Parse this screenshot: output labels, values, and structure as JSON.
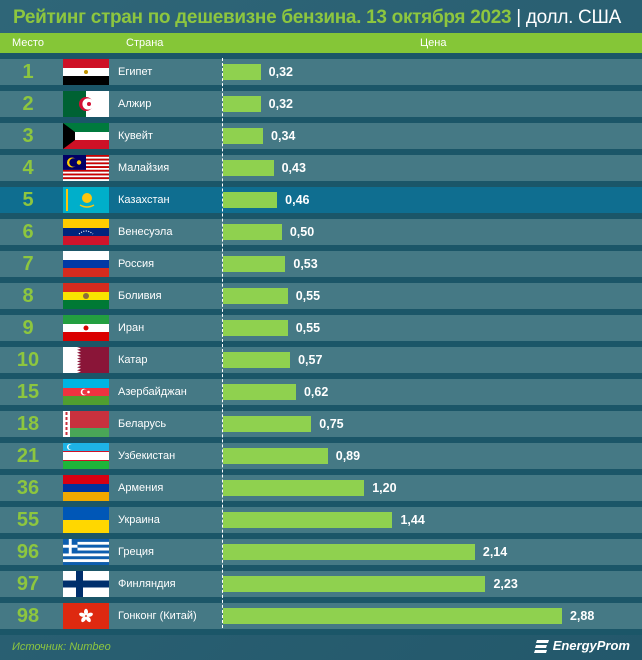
{
  "title": {
    "main": "Рейтинг стран по дешевизне бензина. 13 октября 2023",
    "separator": "|",
    "unit": "долл. США"
  },
  "header": {
    "rank": "Место",
    "country": "Страна",
    "price": "Цена"
  },
  "footer": {
    "source": "Источник: Numbeo",
    "logo": "EnergyProm"
  },
  "colors": {
    "bar": "#8fd14f",
    "highlight_row": "#0f6e90",
    "header": "#85c637",
    "title": "#8dc63f"
  },
  "chart_data": {
    "type": "bar",
    "orientation": "horizontal",
    "title": "Рейтинг стран по дешевизне бензина. 13 октября 2023 | долл. США",
    "highlight": "Казахстан",
    "rows": [
      {
        "rank": "1",
        "country": "Египет",
        "flag": "egypt",
        "value": 0.32,
        "label": "0,32"
      },
      {
        "rank": "2",
        "country": "Алжир",
        "flag": "algeria",
        "value": 0.32,
        "label": "0,32"
      },
      {
        "rank": "3",
        "country": "Кувейт",
        "flag": "kuwait",
        "value": 0.34,
        "label": "0,34"
      },
      {
        "rank": "4",
        "country": "Малайзия",
        "flag": "malaysia",
        "value": 0.43,
        "label": "0,43"
      },
      {
        "rank": "5",
        "country": "Казахстан",
        "flag": "kazakhstan",
        "value": 0.46,
        "label": "0,46"
      },
      {
        "rank": "6",
        "country": "Венесуэла",
        "flag": "venezuela",
        "value": 0.5,
        "label": "0,50"
      },
      {
        "rank": "7",
        "country": "Россия",
        "flag": "russia",
        "value": 0.53,
        "label": "0,53"
      },
      {
        "rank": "8",
        "country": "Боливия",
        "flag": "bolivia",
        "value": 0.55,
        "label": "0,55"
      },
      {
        "rank": "9",
        "country": "Иран",
        "flag": "iran",
        "value": 0.55,
        "label": "0,55"
      },
      {
        "rank": "10",
        "country": "Катар",
        "flag": "qatar",
        "value": 0.57,
        "label": "0,57"
      },
      {
        "rank": "15",
        "country": "Азербайджан",
        "flag": "azerbaijan",
        "value": 0.62,
        "label": "0,62"
      },
      {
        "rank": "18",
        "country": "Беларусь",
        "flag": "belarus",
        "value": 0.75,
        "label": "0,75"
      },
      {
        "rank": "21",
        "country": "Узбекистан",
        "flag": "uzbekistan",
        "value": 0.89,
        "label": "0,89"
      },
      {
        "rank": "36",
        "country": "Армения",
        "flag": "armenia",
        "value": 1.2,
        "label": "1,20"
      },
      {
        "rank": "55",
        "country": "Украина",
        "flag": "ukraine",
        "value": 1.44,
        "label": "1,44"
      },
      {
        "rank": "96",
        "country": "Греция",
        "flag": "greece",
        "value": 2.14,
        "label": "2,14"
      },
      {
        "rank": "97",
        "country": "Финляндия",
        "flag": "finland",
        "value": 2.23,
        "label": "2,23"
      },
      {
        "rank": "98",
        "country": "Гонконг (Китай)",
        "flag": "hong-kong",
        "value": 2.88,
        "label": "2,88"
      }
    ]
  }
}
